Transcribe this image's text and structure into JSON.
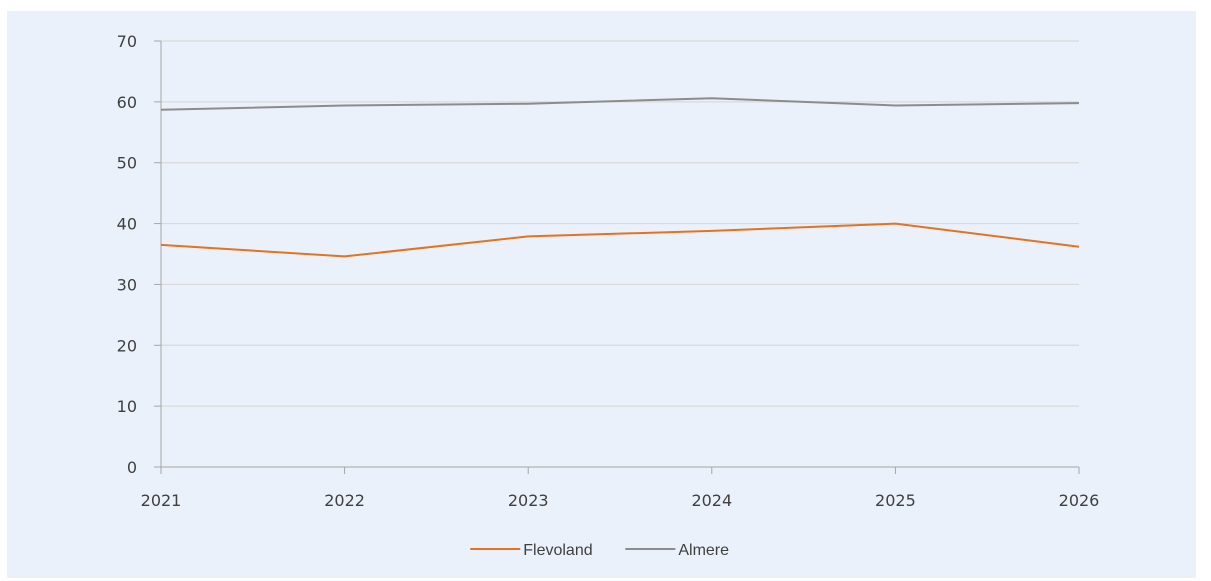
{
  "chart_data": {
    "type": "line",
    "x": [
      "2021",
      "2022",
      "2023",
      "2024",
      "2025",
      "2026"
    ],
    "ylim": [
      0,
      70
    ],
    "yticks": [
      "0",
      "10",
      "20",
      "30",
      "40",
      "50",
      "60",
      "70"
    ],
    "grid": true,
    "legend_position": "bottom",
    "background_color": "#eaf1fb",
    "series": [
      {
        "name": "Flevoland",
        "color": "#e3731f",
        "values": [
          36.5,
          34.6,
          37.9,
          38.8,
          40.0,
          36.2
        ]
      },
      {
        "name": "Almere",
        "color": "#8c8c8c",
        "values": [
          58.7,
          59.4,
          59.7,
          60.6,
          59.4,
          59.8
        ]
      }
    ]
  }
}
